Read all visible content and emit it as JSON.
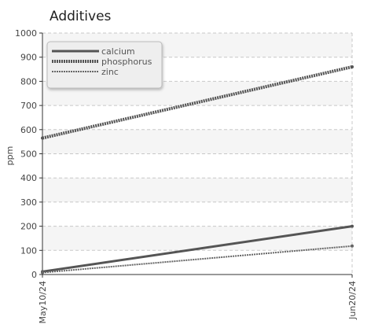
{
  "chart_data": {
    "type": "line",
    "title": "Additives",
    "xlabel": "",
    "ylabel": "ppm",
    "x": [
      "May10/24",
      "Jun20/24"
    ],
    "xlim": [
      "May10/24",
      "Jun20/24"
    ],
    "ylim": [
      0,
      1000
    ],
    "yticks": [
      0,
      100,
      200,
      300,
      400,
      500,
      600,
      700,
      800,
      900,
      1000
    ],
    "grid": true,
    "legend_position": "top-left",
    "series": [
      {
        "name": "calcium",
        "values": [
          12,
          200
        ],
        "color": "#555555",
        "style": "solid"
      },
      {
        "name": "phosphorus",
        "values": [
          565,
          860
        ],
        "color": "#555555",
        "style": "dotted"
      },
      {
        "name": "zinc",
        "values": [
          8,
          118
        ],
        "color": "#666666",
        "style": "dotted-thin"
      }
    ]
  }
}
